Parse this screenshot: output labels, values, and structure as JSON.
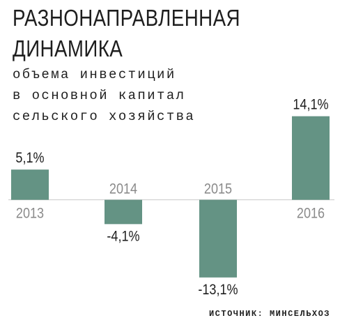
{
  "title_lines": [
    "РАЗНОНАПРАВЛЕННАЯ",
    "ДИНАМИКА"
  ],
  "subtitle_lines": [
    "объема инвестиций",
    "в основной капитал",
    "сельского хозяйства"
  ],
  "source": "ИСТОЧНИК: МИНСЕЛЬХОЗ",
  "colors": {
    "bar": "#649384",
    "axis": "#c9c9c9",
    "year": "#8a8a8a",
    "label": "#1e1e1e"
  },
  "chart_data": {
    "type": "bar",
    "categories": [
      "2013",
      "2014",
      "2015",
      "2016"
    ],
    "values": [
      5.1,
      -4.1,
      -13.1,
      14.1
    ],
    "value_labels": [
      "5,1%",
      "-4,1%",
      "-13,1%",
      "14,1%"
    ],
    "unit": "%",
    "title": "РАЗНОНАПРАВЛЕННАЯ ДИНАМИКА",
    "subtitle": "объема инвестиций в основной капитал сельского хозяйства",
    "ylim": [
      -13.1,
      14.1
    ],
    "grid": false,
    "legend": "none"
  }
}
